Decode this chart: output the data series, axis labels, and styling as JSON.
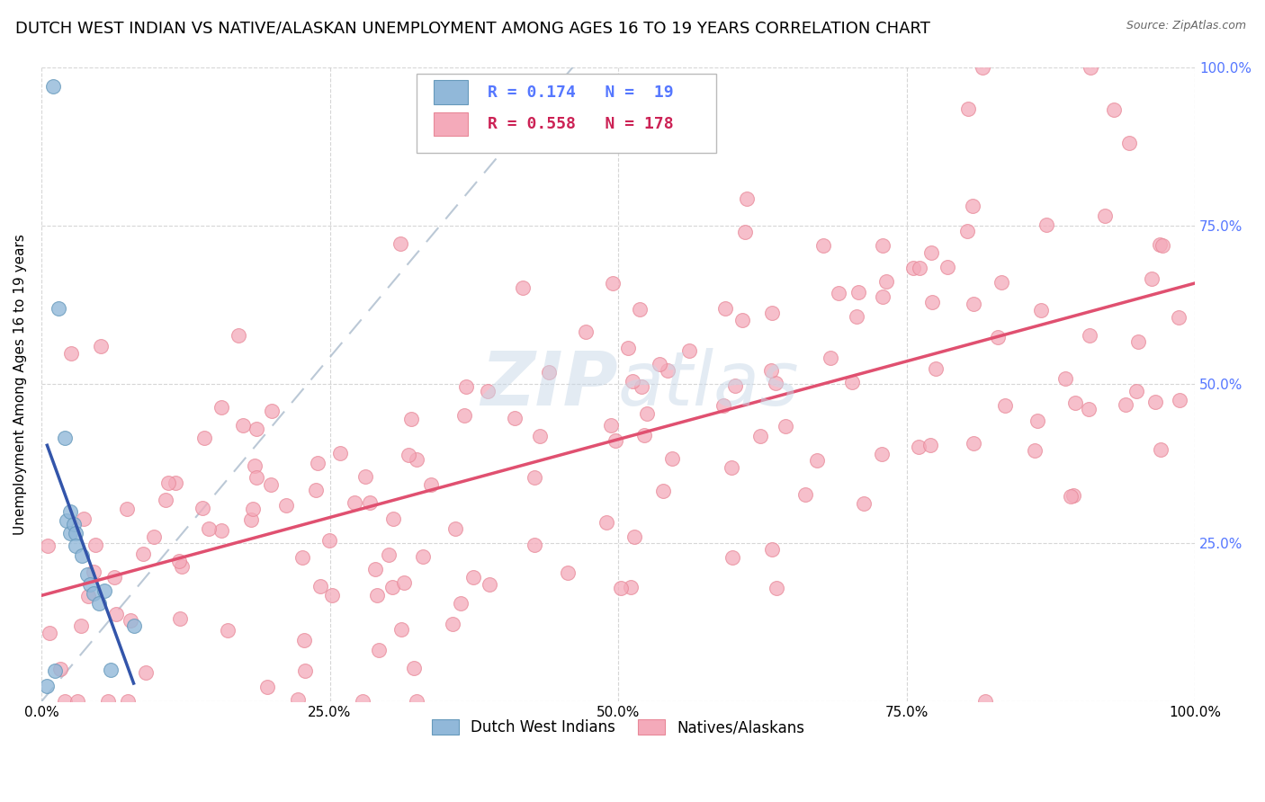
{
  "title": "DUTCH WEST INDIAN VS NATIVE/ALASKAN UNEMPLOYMENT AMONG AGES 16 TO 19 YEARS CORRELATION CHART",
  "source": "Source: ZipAtlas.com",
  "ylabel": "Unemployment Among Ages 16 to 19 years",
  "xlim": [
    0,
    1
  ],
  "ylim": [
    0,
    1
  ],
  "xticks": [
    0,
    0.25,
    0.5,
    0.75,
    1.0
  ],
  "yticks": [
    0,
    0.25,
    0.5,
    0.75,
    1.0
  ],
  "xticklabels": [
    "0.0%",
    "25.0%",
    "50.0%",
    "75.0%",
    "100.0%"
  ],
  "right_yticklabels": [
    "",
    "25.0%",
    "50.0%",
    "75.0%",
    "100.0%"
  ],
  "blue_R": 0.174,
  "blue_N": 19,
  "pink_R": 0.558,
  "pink_N": 178,
  "blue_color": "#91B8D9",
  "pink_color": "#F4AABA",
  "blue_edge": "#6699BB",
  "pink_edge": "#E88898",
  "blue_label": "Dutch West Indians",
  "pink_label": "Natives/Alaskans",
  "title_fontsize": 13,
  "axis_label_fontsize": 11,
  "tick_fontsize": 11,
  "legend_fontsize": 13,
  "background_color": "#FFFFFF",
  "grid_color": "#CCCCCC",
  "watermark_color": "#C8D8E8",
  "blue_line_color": "#3355AA",
  "pink_line_color": "#E05070",
  "diag_line_color": "#AABBCC",
  "right_tick_color": "#5577FF"
}
